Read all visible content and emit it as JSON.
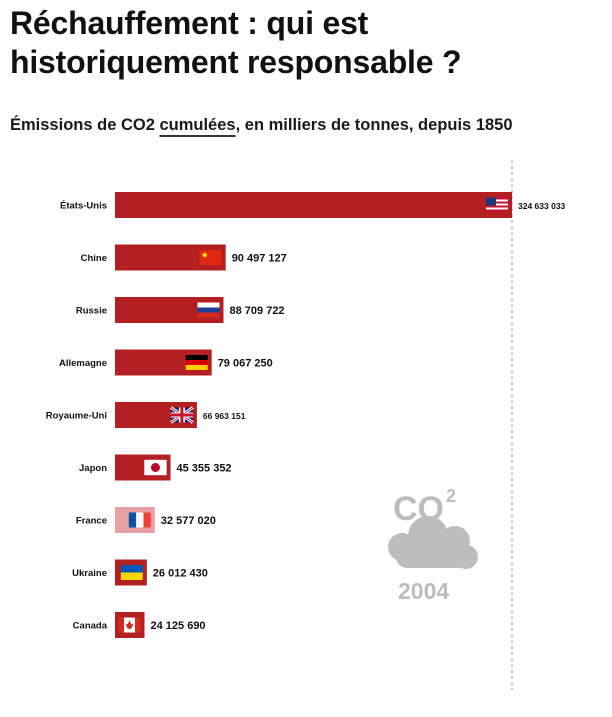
{
  "title": "Réchauffement : qui est historiquement responsable ?",
  "subtitle_prefix": "Émissions de CO2 ",
  "subtitle_emph": "cumulées",
  "subtitle_suffix": ", en milliers de tonnes, depuis 1850",
  "colors": {
    "bar": "#b41f22",
    "bar_highlight": "#e8a0a1",
    "dashed_line": "#999999",
    "co2_logo": "#bdbdbd"
  },
  "logo": {
    "text": "CO",
    "superscript": "2",
    "year": "2004"
  },
  "chart_data": {
    "type": "bar",
    "orientation": "horizontal",
    "unit": "milliers de tonnes",
    "categories": [
      "États-Unis",
      "Chine",
      "Russie",
      "Allemagne",
      "Royaume-Uni",
      "Japon",
      "France",
      "Ukraine",
      "Canada"
    ],
    "values": [
      324633033,
      90497127,
      88709722,
      79067250,
      66963151,
      45355352,
      32577020,
      26012430,
      24125690
    ],
    "value_labels": [
      "324 633 033",
      "90 497 127",
      "88 709 722",
      "79 067 250",
      "66 963 151",
      "45 355 352",
      "32 577 020",
      "26 012 430",
      "24 125 690"
    ],
    "flags": [
      "flag-usa-icon",
      "flag-china-icon",
      "flag-russia-icon",
      "flag-germany-icon",
      "flag-uk-icon",
      "flag-japan-icon",
      "flag-france-icon",
      "flag-ukraine-icon",
      "flag-canada-icon"
    ],
    "highlight": "France",
    "grid": false,
    "legend": "none"
  }
}
